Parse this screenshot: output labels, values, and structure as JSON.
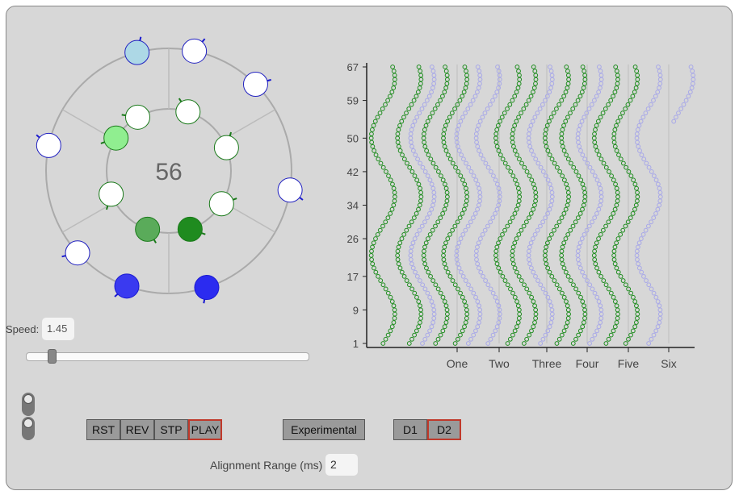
{
  "dial": {
    "center_value": "56",
    "outer_markers": [
      {
        "angle": -15,
        "fill": "#add8e6",
        "stroke": "#2020c0"
      },
      {
        "angle": 12,
        "fill": "#ffffff",
        "stroke": "#2020c0"
      },
      {
        "angle": 45,
        "fill": "#ffffff",
        "stroke": "#2020c0"
      },
      {
        "angle": 99,
        "fill": "#ffffff",
        "stroke": "#2020c0"
      },
      {
        "angle": 162,
        "fill": "#2b2bf0",
        "stroke": "#1a1ad0"
      },
      {
        "angle": 200,
        "fill": "#3a3af0",
        "stroke": "#1a1ad0"
      },
      {
        "angle": 228,
        "fill": "#ffffff",
        "stroke": "#2020c0"
      },
      {
        "angle": 282,
        "fill": "#ffffff",
        "stroke": "#2020c0"
      }
    ],
    "inner_markers": [
      {
        "angle": 18,
        "fill": "#ffffff"
      },
      {
        "angle": 68,
        "fill": "#ffffff"
      },
      {
        "angle": 122,
        "fill": "#ffffff"
      },
      {
        "angle": 160,
        "fill": "#1f8b1f"
      },
      {
        "angle": 200,
        "fill": "#5aab5a"
      },
      {
        "angle": 248,
        "fill": "#ffffff"
      },
      {
        "angle": 302,
        "fill": "#90ee90"
      },
      {
        "angle": 330,
        "fill": "#ffffff"
      }
    ]
  },
  "speed": {
    "label": "Speed:",
    "value": "1.45",
    "fraction": 0.08
  },
  "toggles": [
    {
      "state": "off"
    },
    {
      "state": "off"
    }
  ],
  "buttons": {
    "rst": "RST",
    "rev": "REV",
    "stp": "STP",
    "play": "PLAY",
    "experimental": "Experimental",
    "d1": "D1",
    "d2": "D2"
  },
  "alignment": {
    "label": "Alignment Range (ms)",
    "value": "2"
  },
  "chart_data": {
    "type": "scatter",
    "y_ticks": [
      1,
      9,
      17,
      26,
      34,
      42,
      50,
      59,
      67
    ],
    "ylim": [
      1,
      67
    ],
    "x_categories": [
      "One",
      "Two",
      "Three",
      "Four",
      "Five",
      "Six"
    ],
    "colors": {
      "green": "#1e8c1e",
      "lavender": "#a8a8e8"
    },
    "series": [
      {
        "color": "green",
        "base": 0.05,
        "amp": 0.036,
        "phase": 0.0
      },
      {
        "color": "green",
        "base": 0.13,
        "amp": 0.036,
        "phase": 0.0
      },
      {
        "color": "lavender",
        "base": 0.17,
        "amp": 0.036,
        "phase": 0.0
      },
      {
        "color": "green",
        "base": 0.21,
        "amp": 0.036,
        "phase": 0.0
      },
      {
        "color": "green",
        "base": 0.27,
        "amp": 0.036,
        "phase": 0.0
      },
      {
        "color": "lavender",
        "base": 0.31,
        "amp": 0.036,
        "phase": 0.0
      },
      {
        "color": "lavender",
        "base": 0.37,
        "amp": 0.036,
        "phase": 0.0
      },
      {
        "color": "green",
        "base": 0.43,
        "amp": 0.036,
        "phase": 0.0
      },
      {
        "color": "green",
        "base": 0.48,
        "amp": 0.036,
        "phase": 0.0
      },
      {
        "color": "lavender",
        "base": 0.53,
        "amp": 0.036,
        "phase": 0.0
      },
      {
        "color": "green",
        "base": 0.58,
        "amp": 0.036,
        "phase": 0.0
      },
      {
        "color": "green",
        "base": 0.63,
        "amp": 0.036,
        "phase": 0.0
      },
      {
        "color": "lavender",
        "base": 0.68,
        "amp": 0.036,
        "phase": 0.0
      },
      {
        "color": "green",
        "base": 0.73,
        "amp": 0.036,
        "phase": 0.0
      },
      {
        "color": "green",
        "base": 0.79,
        "amp": 0.036,
        "phase": 0.0
      },
      {
        "color": "lavender",
        "base": 0.86,
        "amp": 0.036,
        "phase": 0.0
      },
      {
        "color": "lavender",
        "base": 0.96,
        "amp": 0.036,
        "phase": 0.0,
        "y_min": 54
      }
    ]
  }
}
